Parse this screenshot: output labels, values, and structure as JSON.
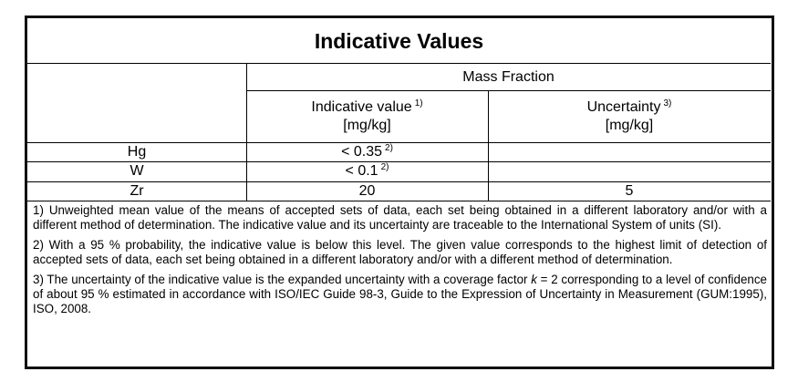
{
  "table": {
    "title": "Indicative Values",
    "group_header": "Mass Fraction",
    "columns": [
      {
        "label": "Indicative value",
        "note": "1)",
        "unit": "[mg/kg]"
      },
      {
        "label": "Uncertainty",
        "note": "3)",
        "unit": "[mg/kg]"
      }
    ],
    "rows": [
      {
        "element": "Hg",
        "value": "< 0.35",
        "note": "2)"
      },
      {
        "element": "W",
        "value": "< 0.1",
        "note": "2)"
      },
      {
        "element": "Zr",
        "value": 20,
        "uncertainty": 5
      }
    ],
    "footnotes": [
      [
        "1) Unweighted mean value of the means of accepted sets of data, each set being obtained in a different laboratory and/or with a different method of determination. The indicative value and its uncertainty are traceable to the International System of units (SI)."
      ],
      [
        "2) With a 95 % probability, the indicative value is below this level. The given value corresponds to the highest limit of detection of accepted sets of data, each set being obtained in a different laboratory and/or with a different method of determination."
      ],
      [
        "3) The uncertainty of the indicative value is the expanded uncertainty with a coverage factor ",
        "k",
        " = 2 corresponding to a level of confidence of about 95 % estimated in accordance with ISO/IEC Guide 98-3, Guide to the Expression of Uncertainty in Measurement (GUM:1995), ISO, 2008."
      ]
    ]
  }
}
